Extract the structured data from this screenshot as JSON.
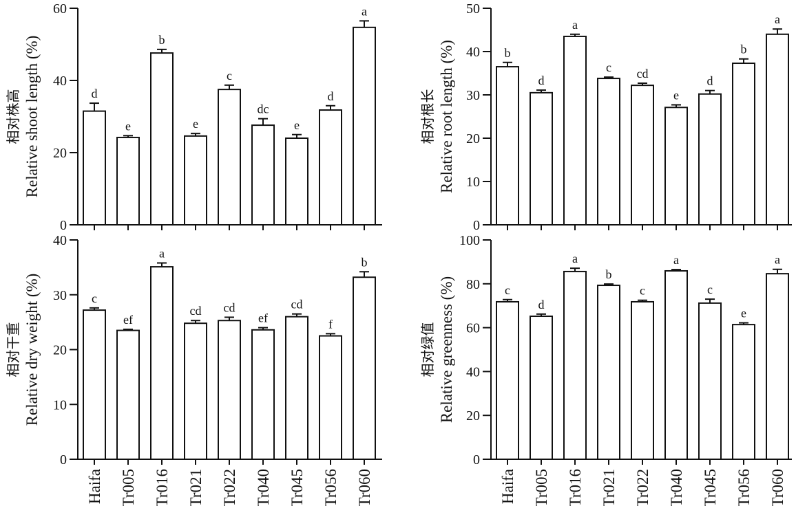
{
  "chart_data": [
    {
      "type": "bar",
      "ylabel": [
        "相对株高",
        "Relative shoot length (%)"
      ],
      "values": [
        31.5,
        24.2,
        47.6,
        24.6,
        37.5,
        27.6,
        24.0,
        31.8,
        54.7
      ],
      "errors": [
        2.2,
        0.5,
        1.0,
        0.7,
        1.2,
        1.8,
        1.0,
        1.2,
        1.8
      ],
      "letters": [
        "d",
        "e",
        "b",
        "e",
        "c",
        "dc",
        "e",
        "d",
        "a"
      ],
      "ylim": [
        0,
        60
      ],
      "yticks": [
        0,
        20,
        40,
        60
      ],
      "color": "#ffffff"
    },
    {
      "type": "bar",
      "ylabel": [
        "相对根长",
        "Relative root length (%)"
      ],
      "values": [
        36.5,
        30.5,
        43.5,
        33.8,
        32.2,
        27.1,
        30.2,
        37.3,
        44.0
      ],
      "errors": [
        1.0,
        0.6,
        0.5,
        0.3,
        0.5,
        0.6,
        0.8,
        1.0,
        1.2
      ],
      "letters": [
        "b",
        "d",
        "a",
        "c",
        "cd",
        "e",
        "d",
        "b",
        "a"
      ],
      "ylim": [
        0,
        50
      ],
      "yticks": [
        0,
        10,
        20,
        30,
        40,
        50
      ],
      "color": "#ffffff"
    },
    {
      "type": "bar",
      "ylabel": [
        "相对干重",
        "Relative dry weight (%)"
      ],
      "categories": [
        "Haifa",
        "Tr005",
        "Tr016",
        "Tr021",
        "Tr022",
        "Tr040",
        "Tr045",
        "Tr056",
        "Tr060"
      ],
      "values": [
        27.2,
        23.5,
        35.1,
        24.8,
        25.3,
        23.6,
        26.0,
        22.5,
        33.2
      ],
      "errors": [
        0.4,
        0.2,
        0.7,
        0.5,
        0.6,
        0.4,
        0.5,
        0.4,
        1.0
      ],
      "letters": [
        "c",
        "ef",
        "a",
        "cd",
        "cd",
        "ef",
        "cd",
        "f",
        "b"
      ],
      "ylim": [
        0,
        40
      ],
      "yticks": [
        0,
        10,
        20,
        30,
        40
      ],
      "color": "#ffffff"
    },
    {
      "type": "bar",
      "ylabel": [
        "相对绿值",
        "Relative greenness (%)"
      ],
      "categories": [
        "Haifa",
        "Tr005",
        "Tr016",
        "Tr021",
        "Tr022",
        "Tr040",
        "Tr045",
        "Tr056",
        "Tr060"
      ],
      "values": [
        71.8,
        65.2,
        85.6,
        79.3,
        71.8,
        85.9,
        71.2,
        61.4,
        84.6
      ],
      "errors": [
        1.0,
        1.0,
        1.5,
        0.6,
        0.7,
        0.6,
        1.8,
        0.8,
        2.0
      ],
      "letters": [
        "c",
        "d",
        "a",
        "b",
        "c",
        "a",
        "c",
        "e",
        "a"
      ],
      "ylim": [
        0,
        100
      ],
      "yticks": [
        0,
        20,
        40,
        60,
        80,
        100
      ],
      "color": "#ffffff"
    }
  ]
}
